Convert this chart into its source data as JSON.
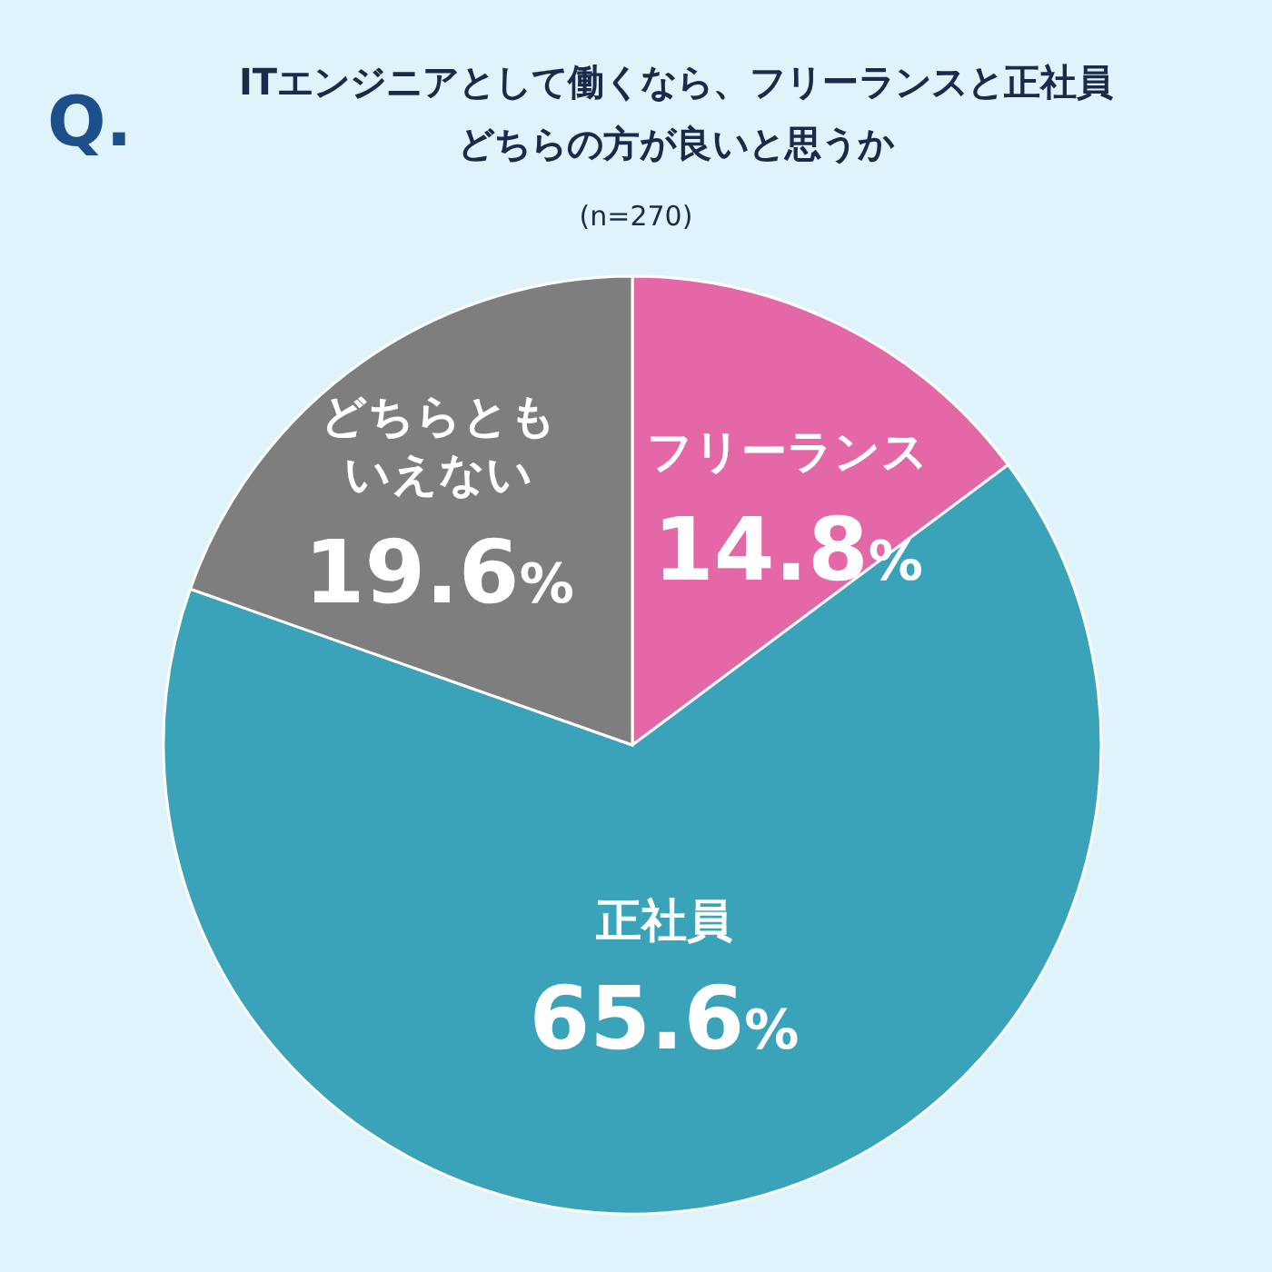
{
  "chart_data": {
    "type": "pie",
    "title": "ITエンジニアとして働くなら、フリーランスと正社員どちらの方が良いと思うか",
    "subtitle": "(n=270)",
    "annotations": [
      "Q."
    ],
    "categories": [
      "フリーランス",
      "正社員",
      "どちらともいえない"
    ],
    "values": [
      14.8,
      65.6,
      19.6
    ],
    "colors": [
      "#e468a8",
      "#3aa2b9",
      "#7e7e7e"
    ],
    "value_labels": [
      "14.8%",
      "65.6%",
      "19.6%"
    ]
  }
}
